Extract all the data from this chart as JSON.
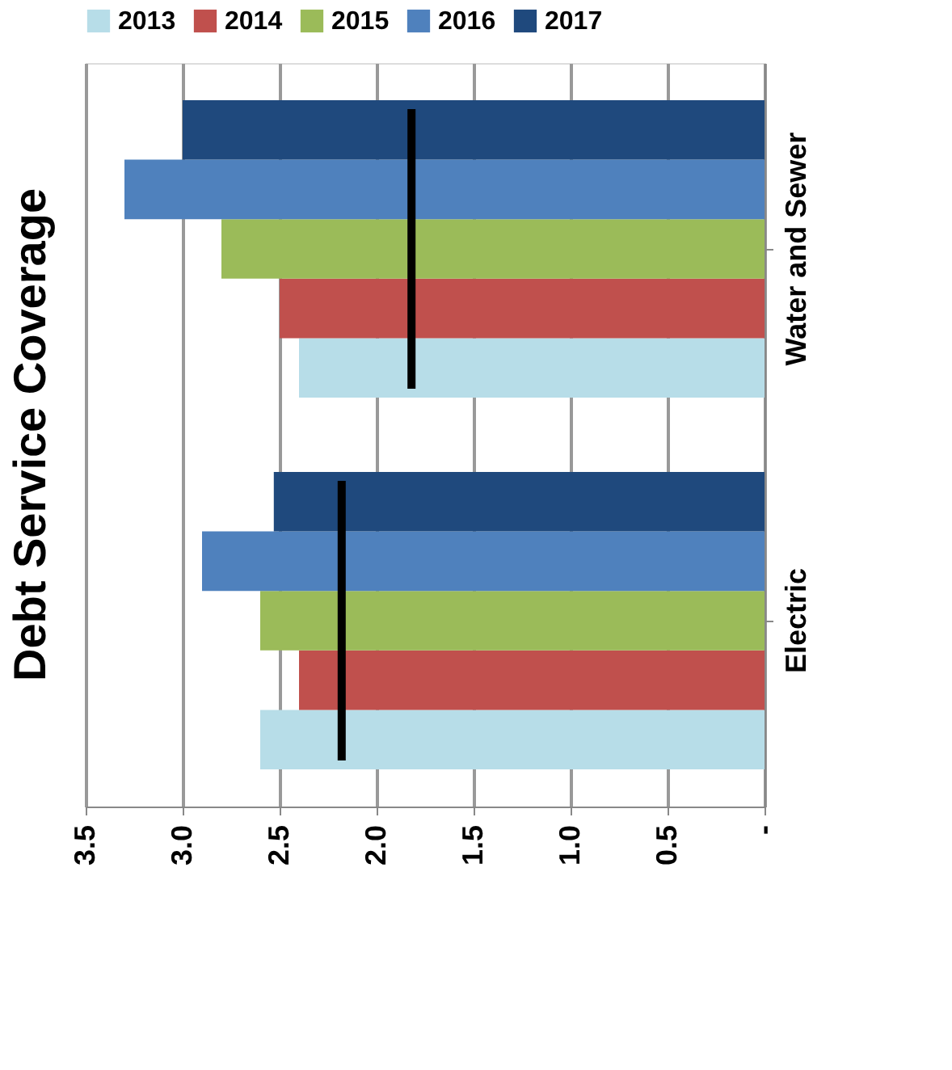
{
  "chart_data": {
    "type": "bar",
    "orientation": "horizontal",
    "title": "Debt Service Coverage",
    "categories": [
      "Water and Sewer",
      "Electric"
    ],
    "series": [
      {
        "name": "2013",
        "color": "#b7dde8",
        "values": [
          2.4,
          2.6
        ]
      },
      {
        "name": "2014",
        "color": "#c0504d",
        "values": [
          2.5,
          2.4
        ]
      },
      {
        "name": "2015",
        "color": "#9bbb59",
        "values": [
          2.8,
          2.6
        ]
      },
      {
        "name": "2016",
        "color": "#4f81bd",
        "values": [
          3.3,
          2.9
        ]
      },
      {
        "name": "2017",
        "color": "#1f497d",
        "values": [
          3.0,
          2.53
        ]
      }
    ],
    "ref_lines": [
      {
        "axis": "x",
        "value": 1.82,
        "color": "#000000"
      },
      {
        "axis": "x",
        "value": 2.18,
        "color": "#000000"
      }
    ],
    "xlim": [
      3.5,
      0
    ],
    "xticks": [
      {
        "value": 3.5,
        "label": "3.5"
      },
      {
        "value": 3,
        "label": "3.0"
      },
      {
        "value": 2.5,
        "label": "2.5"
      },
      {
        "value": 2,
        "label": "2.0"
      },
      {
        "value": 1.5,
        "label": "1.5"
      },
      {
        "value": 1,
        "label": "1.0"
      },
      {
        "value": 0.5,
        "label": "0.5"
      },
      {
        "value": 0,
        "label": "-"
      }
    ],
    "grid": "x",
    "legend": "top"
  }
}
